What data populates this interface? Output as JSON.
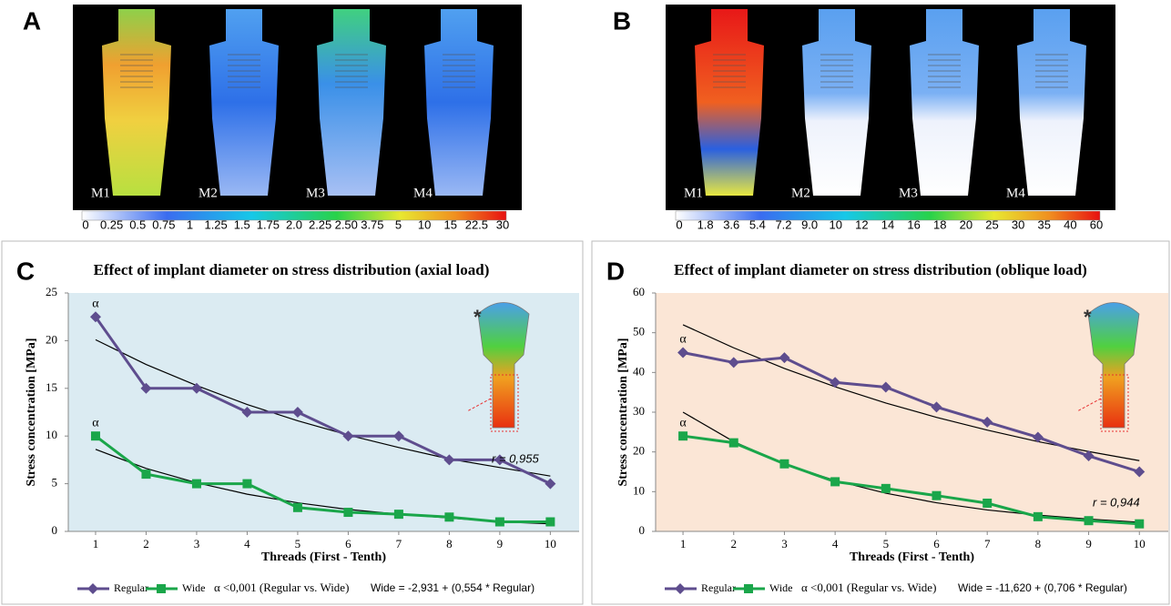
{
  "panels": [
    {
      "letter": "A",
      "model_labels": [
        "M1",
        "M2",
        "M3",
        "M4"
      ],
      "colorbar_labels": [
        "0",
        "0.25",
        "0.5",
        "0.75",
        "1",
        "1.25",
        "1.5",
        "1.75",
        "2.0",
        "2.25",
        "2.50",
        "3.75",
        "5",
        "10",
        "15",
        "22.5",
        "30"
      ]
    },
    {
      "letter": "B",
      "model_labels": [
        "M1",
        "M2",
        "M3",
        "M4"
      ],
      "colorbar_labels": [
        "0",
        "1.8",
        "3.6",
        "5.4",
        "7.2",
        "9.0",
        "10",
        "12",
        "14",
        "16",
        "18",
        "20",
        "25",
        "30",
        "35",
        "40",
        "60"
      ]
    }
  ],
  "chart_data": [
    {
      "type": "line",
      "panel_letter": "C",
      "title": "Effect of implant diameter on stress  distribution (axial load)",
      "x_label": "Threads (First  -  Tenth)",
      "y_label": "Stress concentration [MPa]",
      "x": [
        1,
        2,
        3,
        4,
        5,
        6,
        7,
        8,
        9,
        10
      ],
      "xlim": [
        0.46,
        10.57
      ],
      "xticks": [
        1,
        2,
        3,
        4,
        5,
        6,
        7,
        8,
        9,
        10
      ],
      "ylim": [
        0,
        25
      ],
      "yticks": [
        0,
        5,
        10,
        15,
        20,
        25
      ],
      "background": "#dbebf2",
      "series": [
        {
          "name": "Regular",
          "color": "#5e4d8e",
          "marker": "diamond",
          "annotation": "α",
          "values": [
            22.5,
            15,
            15,
            12.5,
            12.5,
            10,
            10,
            7.5,
            7.5,
            5
          ]
        },
        {
          "name": "Wide",
          "color": "#1aa64a",
          "marker": "square",
          "annotation": "α",
          "values": [
            10,
            6,
            5,
            5,
            2.5,
            2,
            1.8,
            1.5,
            1,
            1
          ]
        }
      ],
      "trend_lines": [
        {
          "color": "#000000",
          "values": [
            20.1,
            17.5,
            15.3,
            13.3,
            11.6,
            10.1,
            8.8,
            7.6,
            6.7,
            5.8
          ]
        },
        {
          "color": "#000000",
          "values": [
            8.6,
            6.6,
            5.1,
            3.9,
            3.0,
            2.3,
            1.8,
            1.4,
            1.0,
            0.8
          ]
        }
      ],
      "inset_mark": "*",
      "correlation": "r = 0,955",
      "significance": "α <0,001 (Regular vs. Wide)",
      "equation": "Wide = -2,931 + (0,554 * Regular)"
    },
    {
      "type": "line",
      "panel_letter": "D",
      "title": "Effect of implant diameter on stress  distribution (oblique load)",
      "x_label": "Threads (First  -  Tenth)",
      "y_label": "Stress concentration [MPa]",
      "x": [
        1,
        2,
        3,
        4,
        5,
        6,
        7,
        8,
        9,
        10
      ],
      "xlim": [
        0.46,
        10.57
      ],
      "xticks": [
        1,
        2,
        3,
        4,
        5,
        6,
        7,
        8,
        9,
        10
      ],
      "ylim": [
        0,
        60
      ],
      "yticks": [
        0,
        10,
        20,
        30,
        40,
        50,
        60
      ],
      "background": "#fbe6d6",
      "series": [
        {
          "name": "Regular",
          "color": "#5e4d8e",
          "marker": "diamond",
          "annotation": "α",
          "values": [
            45,
            42.5,
            43.7,
            37.5,
            36.3,
            31.3,
            27.5,
            23.7,
            19,
            15
          ]
        },
        {
          "name": "Wide",
          "color": "#1aa64a",
          "marker": "square",
          "annotation": "α",
          "values": [
            24,
            22.3,
            17,
            12.5,
            10.8,
            9,
            7.1,
            3.7,
            2.7,
            1.9
          ]
        }
      ],
      "trend_lines": [
        {
          "color": "#000000",
          "values": [
            52,
            46.2,
            41,
            36.4,
            32.3,
            28.7,
            25.5,
            22.6,
            20.1,
            17.8
          ]
        },
        {
          "color": "#000000",
          "values": [
            30,
            22.6,
            17,
            12.8,
            9.6,
            7.2,
            5.4,
            4.1,
            3.1,
            2.3
          ]
        }
      ],
      "inset_mark": "*",
      "correlation": "r = 0,944",
      "significance": "α <0,001 (Regular vs. Wide)",
      "equation": "Wide = -11,620 + (0,706 * Regular)"
    }
  ]
}
